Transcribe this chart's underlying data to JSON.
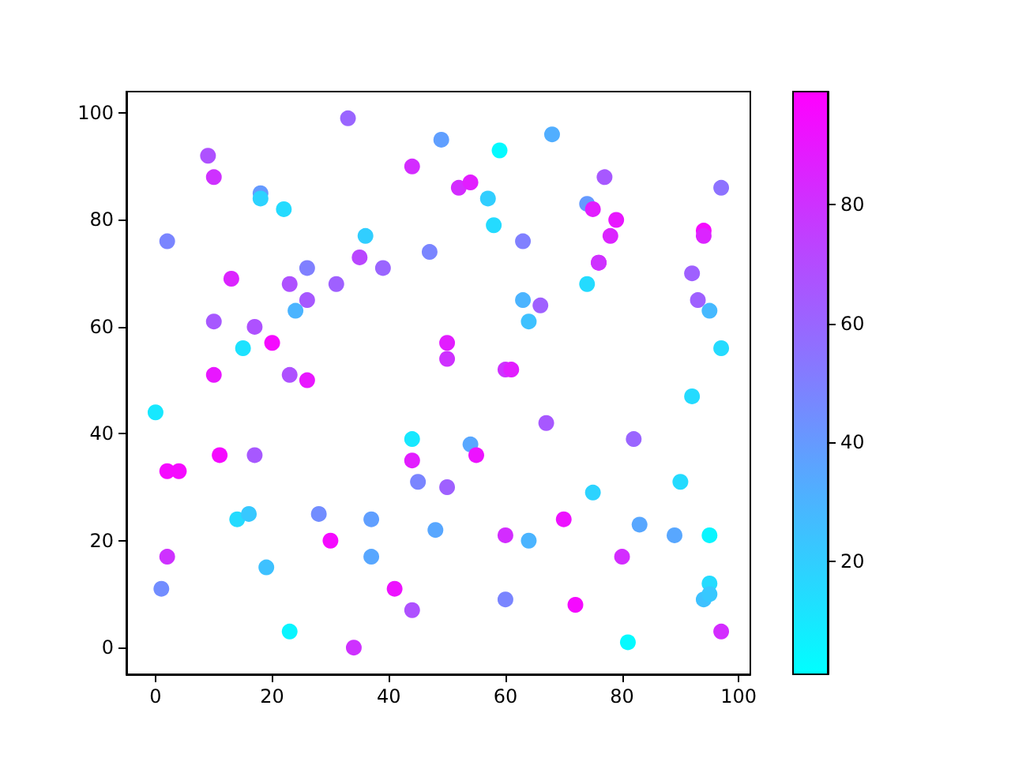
{
  "chart_data": {
    "type": "scatter",
    "marker": "circle",
    "grid": false,
    "x": [
      0,
      1,
      2,
      2,
      4,
      2,
      9,
      10,
      10,
      10,
      11,
      13,
      15,
      14,
      16,
      17,
      17,
      18,
      18,
      19,
      20,
      22,
      23,
      23,
      23,
      24,
      26,
      26,
      26,
      28,
      30,
      31,
      33,
      34,
      35,
      36,
      37,
      37,
      39,
      41,
      44,
      44,
      44,
      45,
      44,
      47,
      48,
      49,
      50,
      50,
      50,
      52,
      54,
      54,
      55,
      57,
      58,
      59,
      60,
      61,
      60,
      60,
      63,
      63,
      64,
      64,
      66,
      67,
      68,
      70,
      72,
      74,
      75,
      74,
      75,
      76,
      76,
      77,
      78,
      79,
      80,
      81,
      82,
      83,
      89,
      90,
      92,
      92,
      93,
      94,
      94,
      95,
      95,
      95,
      94,
      95,
      97,
      97,
      97
    ],
    "values": [
      44,
      11,
      76,
      33,
      33,
      17,
      92,
      88,
      61,
      51,
      36,
      69,
      56,
      24,
      25,
      60,
      36,
      85,
      84,
      15,
      57,
      82,
      68,
      51,
      3,
      63,
      71,
      65,
      50,
      25,
      20,
      68,
      99,
      0,
      73,
      77,
      24,
      17,
      71,
      11,
      90,
      39,
      35,
      31,
      7,
      74,
      22,
      95,
      57,
      54,
      30,
      86,
      87,
      38,
      36,
      84,
      79,
      93,
      52,
      52,
      21,
      9,
      76,
      65,
      61,
      20,
      64,
      42,
      96,
      24,
      8,
      83,
      82,
      68,
      29,
      72,
      72,
      88,
      77,
      80,
      17,
      1,
      39,
      23,
      21,
      31,
      70,
      47,
      65,
      78,
      77,
      63,
      21,
      12,
      9,
      10,
      86,
      56,
      3
    ],
    "cvalues": [
      10,
      45,
      48,
      95,
      95,
      80,
      68,
      80,
      65,
      90,
      95,
      85,
      12,
      15,
      22,
      68,
      65,
      40,
      18,
      25,
      95,
      15,
      68,
      68,
      5,
      30,
      50,
      65,
      90,
      45,
      95,
      62,
      60,
      80,
      72,
      20,
      38,
      35,
      60,
      92,
      82,
      10,
      88,
      48,
      68,
      48,
      35,
      38,
      88,
      80,
      62,
      82,
      88,
      35,
      92,
      20,
      15,
      3,
      80,
      88,
      82,
      48,
      50,
      30,
      25,
      30,
      62,
      65,
      32,
      92,
      95,
      40,
      88,
      15,
      18,
      92,
      80,
      65,
      85,
      90,
      82,
      3,
      60,
      35,
      35,
      15,
      62,
      15,
      62,
      95,
      85,
      28,
      5,
      15,
      25,
      22,
      55,
      15,
      82
    ],
    "xlim": [
      -5,
      102
    ],
    "xticks": [
      0,
      20,
      40,
      60,
      80,
      100
    ],
    "ylim": [
      -5,
      104
    ],
    "yticks": [
      0,
      20,
      40,
      60,
      80,
      100
    ],
    "clim": [
      1,
      99
    ],
    "cticks": [
      20,
      40,
      60,
      80
    ]
  }
}
